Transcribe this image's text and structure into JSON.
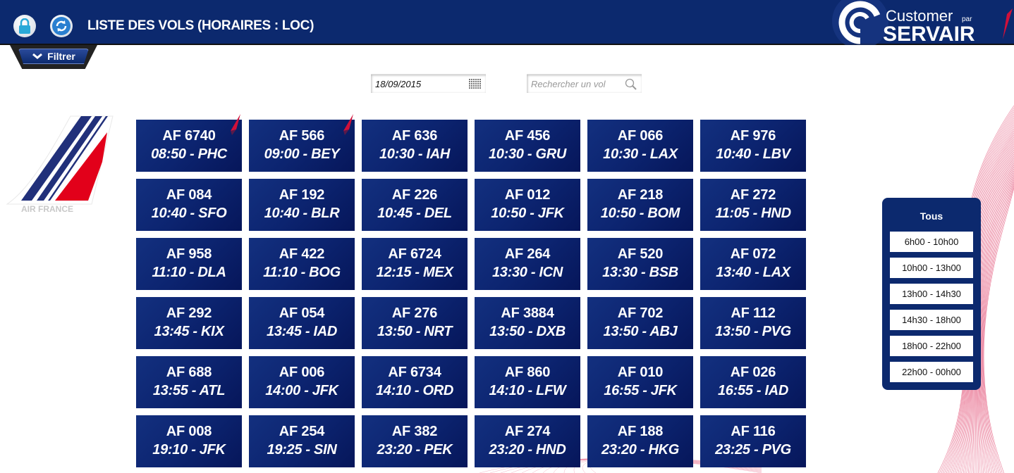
{
  "header": {
    "title": "LISTE DES VOLS (HORAIRES : LOC)",
    "logo_text_1": "Customer",
    "logo_text_par": "par",
    "logo_text_2": "SERVAIR",
    "lock_icon": "lock-icon",
    "refresh_icon": "refresh-icon"
  },
  "filter": {
    "label": "Filtrer"
  },
  "date": {
    "value": "18/09/2015"
  },
  "search": {
    "placeholder": "Rechercher un vol"
  },
  "airline": {
    "name": "AIR FRANCE"
  },
  "colors": {
    "header": "#0c296e",
    "tile": "#0c2470",
    "flag": "#d0103a"
  },
  "flights": [
    {
      "num": "AF 6740",
      "time": "08:50 - PHC",
      "flag": true
    },
    {
      "num": "AF 566",
      "time": "09:00 - BEY",
      "flag": true
    },
    {
      "num": "AF 636",
      "time": "10:30 - IAH"
    },
    {
      "num": "AF 456",
      "time": "10:30 - GRU"
    },
    {
      "num": "AF 066",
      "time": "10:30 - LAX"
    },
    {
      "num": "AF 976",
      "time": "10:40 - LBV"
    },
    {
      "num": "AF 084",
      "time": "10:40 - SFO"
    },
    {
      "num": "AF 192",
      "time": "10:40 - BLR"
    },
    {
      "num": "AF 226",
      "time": "10:45 - DEL"
    },
    {
      "num": "AF 012",
      "time": "10:50 - JFK"
    },
    {
      "num": "AF 218",
      "time": "10:50 - BOM"
    },
    {
      "num": "AF 272",
      "time": "11:05 - HND"
    },
    {
      "num": "AF 958",
      "time": "11:10 - DLA"
    },
    {
      "num": "AF 422",
      "time": "11:10 - BOG"
    },
    {
      "num": "AF 6724",
      "time": "12:15 - MEX"
    },
    {
      "num": "AF 264",
      "time": "13:30 - ICN"
    },
    {
      "num": "AF 520",
      "time": "13:30 - BSB"
    },
    {
      "num": "AF 072",
      "time": "13:40 - LAX"
    },
    {
      "num": "AF 292",
      "time": "13:45 - KIX"
    },
    {
      "num": "AF 054",
      "time": "13:45 - IAD"
    },
    {
      "num": "AF 276",
      "time": "13:50 - NRT"
    },
    {
      "num": "AF 3884",
      "time": "13:50 - DXB"
    },
    {
      "num": "AF 702",
      "time": "13:50 - ABJ"
    },
    {
      "num": "AF 112",
      "time": "13:50 - PVG"
    },
    {
      "num": "AF 688",
      "time": "13:55 - ATL"
    },
    {
      "num": "AF 006",
      "time": "14:00 - JFK"
    },
    {
      "num": "AF 6734",
      "time": "14:10 - ORD"
    },
    {
      "num": "AF 860",
      "time": "14:10 - LFW"
    },
    {
      "num": "AF 010",
      "time": "16:55 - JFK"
    },
    {
      "num": "AF 026",
      "time": "16:55 - IAD"
    },
    {
      "num": "AF 008",
      "time": "19:10 - JFK"
    },
    {
      "num": "AF 254",
      "time": "19:25 - SIN"
    },
    {
      "num": "AF 382",
      "time": "23:20 - PEK"
    },
    {
      "num": "AF 274",
      "time": "23:20 - HND"
    },
    {
      "num": "AF 188",
      "time": "23:20 - HKG"
    },
    {
      "num": "AF 116",
      "time": "23:25 - PVG"
    }
  ],
  "time_filter": {
    "all": "Tous",
    "slots": [
      "6h00 - 10h00",
      "10h00 - 13h00",
      "13h00 - 14h30",
      "14h30 - 18h00",
      "18h00 - 22h00",
      "22h00 - 00h00"
    ]
  }
}
